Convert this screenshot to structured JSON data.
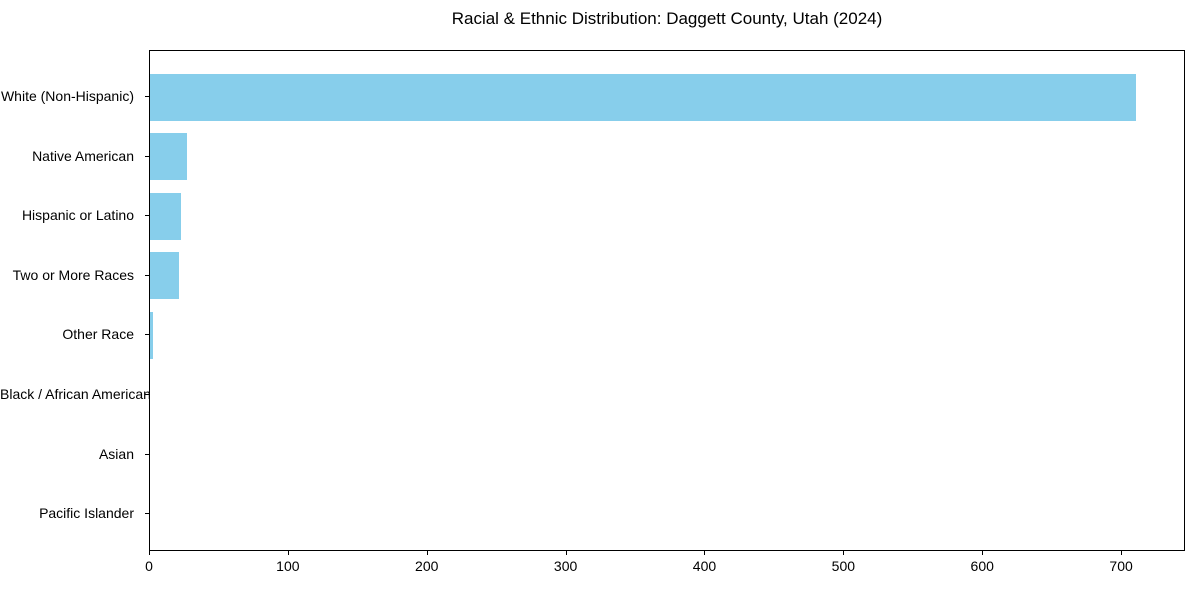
{
  "chart_data": {
    "type": "bar",
    "orientation": "horizontal",
    "title": "Racial & Ethnic Distribution: Daggett County, Utah (2024)",
    "categories": [
      "White (Non-Hispanic)",
      "Native American",
      "Hispanic or Latino",
      "Two or More Races",
      "Other Race",
      "Black / African American",
      "Asian",
      "Pacific Islander"
    ],
    "values": [
      710,
      27,
      22,
      21,
      2,
      0,
      0,
      0
    ],
    "xlabel": "",
    "ylabel": "",
    "xlim": [
      0,
      746
    ],
    "xticks": [
      0,
      100,
      200,
      300,
      400,
      500,
      600,
      700
    ],
    "bar_color": "#87CEEB",
    "axis_color": "#000000",
    "background": "#FFFFFF",
    "grid": false,
    "legend": null
  }
}
